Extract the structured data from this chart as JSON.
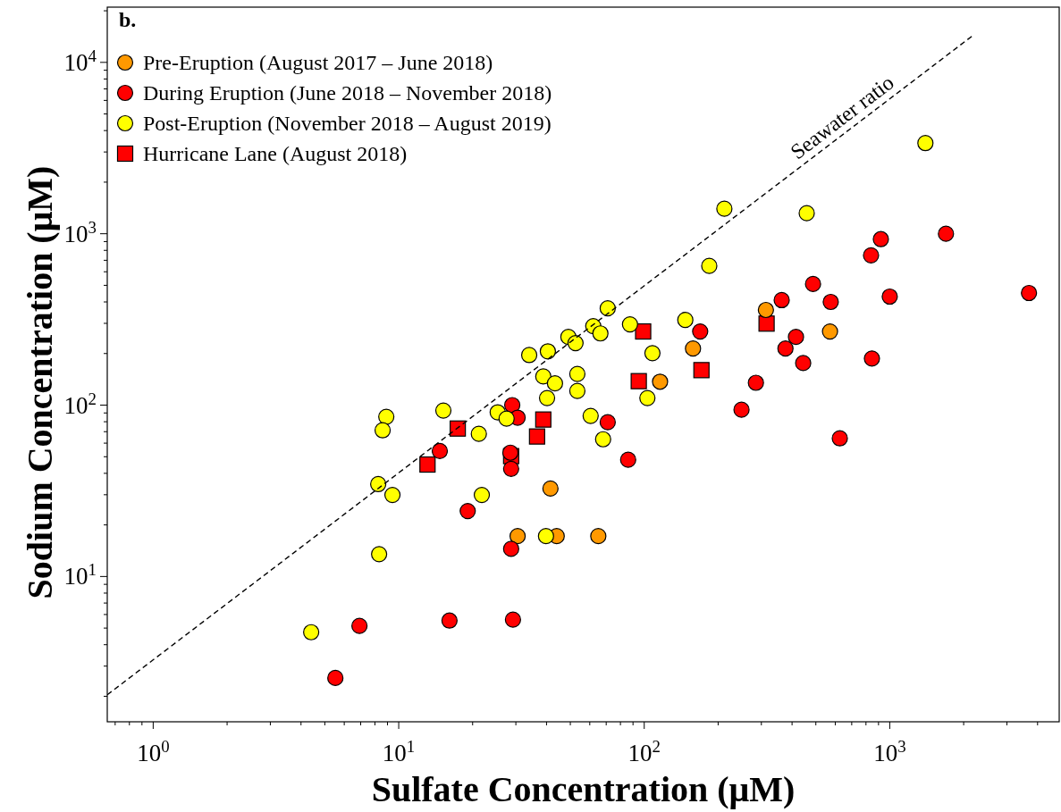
{
  "chart_data": {
    "type": "scatter",
    "xlabel": "Sulfate Concentration (μM)",
    "ylabel": "Sodium Concentration (μM)",
    "annotations": [
      "b."
    ],
    "log": "xy",
    "grid": false,
    "legend": "top left",
    "xlim": [
      0.65,
      4900
    ],
    "ylim": [
      1.42,
      21000
    ],
    "xticks": [
      {
        "value": 0.7,
        "label": null
      },
      {
        "value": 0.8,
        "label": null
      },
      {
        "value": 0.9,
        "label": null
      },
      {
        "value": 1,
        "label": "10$^{0}$"
      },
      {
        "value": 2,
        "label": null
      },
      {
        "value": 3,
        "label": null
      },
      {
        "value": 4,
        "label": null
      },
      {
        "value": 5,
        "label": null
      },
      {
        "value": 6,
        "label": null
      },
      {
        "value": 7,
        "label": null
      },
      {
        "value": 8,
        "label": null
      },
      {
        "value": 9,
        "label": null
      },
      {
        "value": 10,
        "label": "10$^{1}$"
      },
      {
        "value": 20,
        "label": null
      },
      {
        "value": 30,
        "label": null
      },
      {
        "value": 40,
        "label": null
      },
      {
        "value": 50,
        "label": null
      },
      {
        "value": 60,
        "label": null
      },
      {
        "value": 70,
        "label": null
      },
      {
        "value": 80,
        "label": null
      },
      {
        "value": 90,
        "label": null
      },
      {
        "value": 100,
        "label": "10$^{2}$"
      },
      {
        "value": 200,
        "label": null
      },
      {
        "value": 300,
        "label": null
      },
      {
        "value": 400,
        "label": null
      },
      {
        "value": 500,
        "label": null
      },
      {
        "value": 600,
        "label": null
      },
      {
        "value": 700,
        "label": null
      },
      {
        "value": 800,
        "label": null
      },
      {
        "value": 900,
        "label": null
      },
      {
        "value": 1000,
        "label": "10$^{3}$"
      },
      {
        "value": 2000,
        "label": null
      },
      {
        "value": 3000,
        "label": null
      },
      {
        "value": 4000,
        "label": null
      }
    ],
    "yticks": [
      {
        "value": 2,
        "label": null
      },
      {
        "value": 3,
        "label": null
      },
      {
        "value": 4,
        "label": null
      },
      {
        "value": 5,
        "label": null
      },
      {
        "value": 6,
        "label": null
      },
      {
        "value": 7,
        "label": null
      },
      {
        "value": 8,
        "label": null
      },
      {
        "value": 9,
        "label": null
      },
      {
        "value": 10,
        "label": "10$^{1}$"
      },
      {
        "value": 20,
        "label": null
      },
      {
        "value": 30,
        "label": null
      },
      {
        "value": 40,
        "label": null
      },
      {
        "value": 50,
        "label": null
      },
      {
        "value": 60,
        "label": null
      },
      {
        "value": 70,
        "label": null
      },
      {
        "value": 80,
        "label": null
      },
      {
        "value": 90,
        "label": null
      },
      {
        "value": 100,
        "label": "10$^{2}$"
      },
      {
        "value": 200,
        "label": null
      },
      {
        "value": 300,
        "label": null
      },
      {
        "value": 400,
        "label": null
      },
      {
        "value": 500,
        "label": null
      },
      {
        "value": 600,
        "label": null
      },
      {
        "value": 700,
        "label": null
      },
      {
        "value": 800,
        "label": null
      },
      {
        "value": 900,
        "label": null
      },
      {
        "value": 1000,
        "label": "10$^{3}$"
      },
      {
        "value": 2000,
        "label": null
      },
      {
        "value": 3000,
        "label": null
      },
      {
        "value": 4000,
        "label": null
      },
      {
        "value": 5000,
        "label": null
      },
      {
        "value": 6000,
        "label": null
      },
      {
        "value": 7000,
        "label": null
      },
      {
        "value": 8000,
        "label": null
      },
      {
        "value": 9000,
        "label": null
      },
      {
        "value": 10000,
        "label": "10$^{4}$"
      },
      {
        "value": 20000,
        "label": null
      }
    ],
    "series": [
      {
        "name": "Pre-Eruption (August 2017 – June 2018)",
        "color": "#ff9900",
        "marker": "circle",
        "x": [
          313,
          158,
          571,
          116,
          41.5,
          30.5,
          44,
          65
        ],
        "values": [
          359,
          214,
          269,
          137,
          32.6,
          17.2,
          17.2,
          17.2
        ]
      },
      {
        "name": "During Eruption (June 2018 – November 2018)",
        "color": "#ff0000",
        "marker": "circle",
        "x": [
          5.52,
          6.92,
          16.1,
          29.2,
          14.7,
          19.1,
          28.7,
          29,
          30.5,
          28.5,
          28.7,
          71,
          86,
          169,
          249,
          285,
          363,
          415,
          376,
          444,
          487,
          575,
          626,
          839,
          920,
          846,
          1000,
          1694,
          3690
        ],
        "values": [
          2.56,
          5.15,
          5.53,
          5.6,
          54,
          24.1,
          14.5,
          100,
          84.5,
          52.8,
          42.5,
          79.5,
          48,
          269,
          94,
          135,
          410,
          250,
          214,
          176,
          509,
          400,
          64,
          748,
          930,
          187,
          430,
          1000,
          451
        ]
      },
      {
        "name": "Post-Eruption (November 2018 – August 2019)",
        "color": "#ffff00",
        "marker": "circle",
        "x": [
          4.4,
          8.32,
          8.25,
          9.43,
          8.9,
          8.6,
          15.2,
          21.2,
          21.8,
          25.3,
          27.5,
          34,
          40.5,
          38.8,
          43.3,
          40.2,
          53.4,
          53.4,
          49.1,
          52.5,
          62,
          66.3,
          71,
          60.5,
          68,
          87.5,
          108,
          103,
          147,
          184,
          212,
          459,
          1397,
          39.8
        ],
        "values": [
          4.73,
          13.5,
          34.6,
          29.9,
          85.5,
          71.3,
          93,
          68,
          29.9,
          90.8,
          83.4,
          196,
          206,
          147,
          134,
          110,
          152,
          121,
          250,
          230,
          289,
          262,
          367,
          86.5,
          63.2,
          296,
          201,
          110,
          314,
          649,
          1400,
          1318,
          3380,
          17.2
        ]
      },
      {
        "name": "Hurricane Lane (August 2018)",
        "color": "#ff0000",
        "marker": "square",
        "x": [
          13.1,
          17.4,
          28.7,
          36.6,
          38.8,
          95,
          99,
          171,
          315
        ],
        "values": [
          45,
          73,
          50.4,
          65.6,
          82.4,
          138,
          269,
          160,
          299
        ]
      },
      {
        "name": "Seawater ratio",
        "type": "line",
        "color": "#000000",
        "line_style": "dashed",
        "marker": "none",
        "x": [
          0.65,
          2160
        ],
        "values": [
          2.04,
          14200
        ]
      }
    ]
  }
}
